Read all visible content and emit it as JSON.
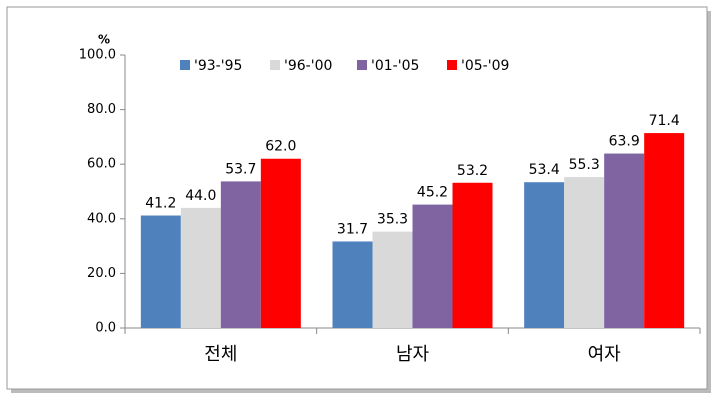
{
  "chart_data": {
    "type": "bar",
    "y_label": "%",
    "categories": [
      "전체",
      "남자",
      "여자"
    ],
    "series": [
      {
        "name": "'93-'95",
        "color": "#4f81bd",
        "values": [
          41.2,
          31.7,
          53.4
        ],
        "value_labels": [
          "41.2",
          "31.7",
          "53.4"
        ]
      },
      {
        "name": "'96-'00",
        "color": "#d9d9d9",
        "values": [
          44.0,
          35.3,
          55.3
        ],
        "value_labels": [
          "44.0",
          "35.3",
          "55.3"
        ]
      },
      {
        "name": "'01-'05",
        "color": "#8064a2",
        "values": [
          53.7,
          45.2,
          63.9
        ],
        "value_labels": [
          "53.7",
          "45.2",
          "63.9"
        ]
      },
      {
        "name": "'05-'09",
        "color": "#ff0000",
        "values": [
          62.0,
          53.2,
          71.4
        ],
        "value_labels": [
          "62.0",
          "53.2",
          "71.4"
        ]
      }
    ],
    "ylim": [
      0,
      100
    ],
    "yticks": [
      {
        "value": 0,
        "label": "0.0"
      },
      {
        "value": 20,
        "label": "20.0"
      },
      {
        "value": 40,
        "label": "40.0"
      },
      {
        "value": 60,
        "label": "60.0"
      },
      {
        "value": 80,
        "label": "80.0"
      },
      {
        "value": 100,
        "label": "100.0"
      }
    ],
    "legend": "top",
    "grid": false
  }
}
